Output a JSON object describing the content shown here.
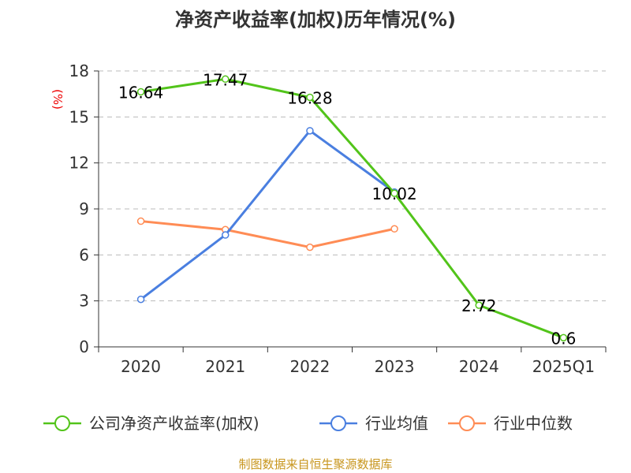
{
  "chart_data": {
    "type": "line",
    "title": "净资产收益率(加权)历年情况(%)",
    "ylabel": "(%)",
    "xlabel": "",
    "categories": [
      "2020",
      "2021",
      "2022",
      "2023",
      "2024",
      "2025Q1"
    ],
    "ylim": [
      0,
      18
    ],
    "yticks": [
      0,
      3,
      6,
      9,
      12,
      15,
      18
    ],
    "grid": true,
    "legend_position": "bottom",
    "series": [
      {
        "name": "公司净资产收益率(加权)",
        "color": "#52c41a",
        "values": [
          16.64,
          17.47,
          16.28,
          10.02,
          2.72,
          0.6
        ],
        "labels": [
          "16.64",
          "17.47",
          "16.28",
          "10.02",
          "2.72",
          "0.6"
        ]
      },
      {
        "name": "行业均值",
        "color": "#4a7fe0",
        "values": [
          3.1,
          7.3,
          14.1,
          10.1,
          null,
          null
        ]
      },
      {
        "name": "行业中位数",
        "color": "#ff8c55",
        "values": [
          8.2,
          7.65,
          6.5,
          7.7,
          null,
          null
        ]
      }
    ]
  },
  "source": "制图数据来自恒生聚源数据库"
}
